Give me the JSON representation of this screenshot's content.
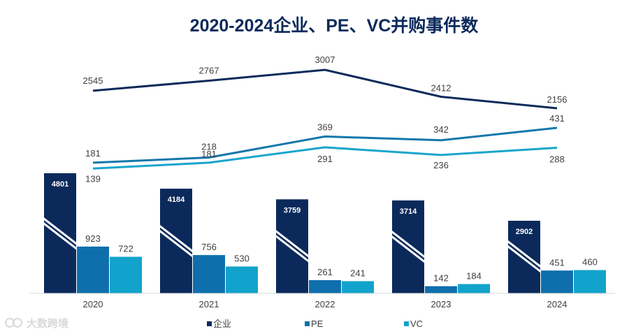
{
  "chart_data": {
    "type": "bar+line",
    "title": "2020-2024企业、PE、VC并购事件数",
    "categories": [
      "2020",
      "2021",
      "2022",
      "2023",
      "2024"
    ],
    "bar_series": [
      {
        "name": "企业",
        "values": [
          4801,
          4184,
          3759,
          3714,
          2902
        ],
        "color": "#0b2a5b",
        "broken_axis": true
      },
      {
        "name": "PE",
        "values": [
          923,
          756,
          261,
          142,
          451
        ],
        "color": "#0f6fad"
      },
      {
        "name": "VC",
        "values": [
          722,
          530,
          241,
          184,
          460
        ],
        "color": "#12a3cc"
      }
    ],
    "line_series": [
      {
        "name": "企业",
        "values": [
          2545,
          2767,
          3007,
          2412,
          2156
        ],
        "color": "#0b2a5b"
      },
      {
        "name": "PE",
        "values": [
          181,
          218,
          369,
          342,
          431
        ],
        "color": "#1477ad"
      },
      {
        "name": "VC",
        "values": [
          139,
          181,
          291,
          236,
          288
        ],
        "color": "#19a5cc"
      }
    ],
    "legend": [
      "企业",
      "PE",
      "VC"
    ],
    "legend_position": "bottom"
  },
  "watermark": "大数跨境"
}
